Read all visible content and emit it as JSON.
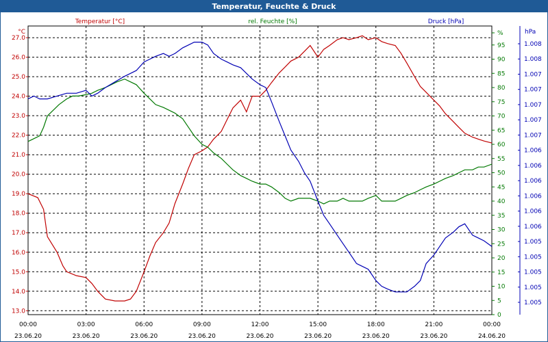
{
  "window": {
    "title": "Temperatur, Feuchte & Druck"
  },
  "colors": {
    "temperature": "#c00000",
    "humidity": "#007800",
    "pressure": "#0000b4",
    "titlebar": "#1f5a96",
    "grid": "#000000"
  },
  "chart_data": {
    "type": "line",
    "title": "Temperatur, Feuchte & Druck",
    "x": {
      "ticks": [
        {
          "hours": 0,
          "time": "00:00",
          "date": "23.06.20"
        },
        {
          "hours": 3,
          "time": "03:00",
          "date": "23.06.20"
        },
        {
          "hours": 6,
          "time": "06:00",
          "date": "23.06.20"
        },
        {
          "hours": 9,
          "time": "09:00",
          "date": "23.06.20"
        },
        {
          "hours": 12,
          "time": "12:00",
          "date": "23.06.20"
        },
        {
          "hours": 15,
          "time": "15:00",
          "date": "23.06.20"
        },
        {
          "hours": 18,
          "time": "18:00",
          "date": "23.06.20"
        },
        {
          "hours": 21,
          "time": "21:00",
          "date": "23.06.20"
        },
        {
          "hours": 24,
          "time": "00:00",
          "date": "24.06.20"
        }
      ],
      "range": [
        0,
        24
      ]
    },
    "y_left": {
      "unit": "°C",
      "range": [
        12.8,
        27.6
      ],
      "ticks": [
        "13.0",
        "14.0",
        "15.0",
        "16.0",
        "17.0",
        "18.0",
        "19.0",
        "20.0",
        "21.0",
        "22.0",
        "23.0",
        "24.0",
        "25.0",
        "26.0",
        "27.0"
      ]
    },
    "y_right1": {
      "unit": "%",
      "range": [
        0,
        100
      ],
      "ticks": [
        "0",
        "5",
        "10",
        "15",
        "20",
        "25",
        "30",
        "35",
        "40",
        "45",
        "50",
        "55",
        "60",
        "65",
        "70",
        "75",
        "80",
        "85",
        "90",
        "95",
        "%"
      ]
    },
    "y_right2": {
      "unit": "hPa",
      "ticks": [
        "1.005",
        "1.005",
        "1.005",
        "1.005",
        "1.005",
        "1.006",
        "1.006",
        "1.006",
        "1.006",
        "1.006",
        "1.006",
        "1.007",
        "1.007",
        "1.007",
        "1.007",
        "1.007",
        "1.008",
        "1.008"
      ]
    },
    "series": [
      {
        "name": "Temperatur [°C]",
        "axis": "left",
        "x": [
          0,
          0.5,
          0.8,
          1,
          1.5,
          1.8,
          2,
          2.5,
          3,
          3.3,
          3.6,
          4,
          4.5,
          5,
          5.3,
          5.6,
          6,
          6.3,
          6.6,
          7,
          7.3,
          7.6,
          8,
          8.3,
          8.6,
          9,
          9.3,
          9.6,
          10,
          10.3,
          10.6,
          11,
          11.3,
          11.6,
          12,
          12.3,
          12.6,
          13,
          13.3,
          13.6,
          14,
          14.3,
          14.6,
          15,
          15.3,
          15.6,
          16,
          16.3,
          16.6,
          17,
          17.3,
          17.6,
          18,
          18.3,
          18.6,
          19,
          19.3,
          19.6,
          20,
          20.3,
          20.6,
          21,
          21.3,
          21.6,
          22,
          22.3,
          22.6,
          23,
          23.3,
          23.6,
          24
        ],
        "values": [
          19.0,
          18.8,
          18.2,
          16.8,
          16.0,
          15.3,
          15.0,
          14.8,
          14.7,
          14.4,
          14.0,
          13.6,
          13.5,
          13.5,
          13.6,
          14.0,
          15.0,
          15.8,
          16.5,
          17.0,
          17.5,
          18.5,
          19.5,
          20.3,
          21.0,
          21.2,
          21.4,
          21.8,
          22.2,
          22.8,
          23.4,
          23.8,
          23.2,
          24.0,
          24.0,
          24.3,
          24.7,
          25.2,
          25.5,
          25.8,
          26.0,
          26.3,
          26.6,
          26.0,
          26.4,
          26.6,
          26.9,
          27.0,
          26.9,
          27.0,
          27.1,
          26.9,
          27.0,
          26.8,
          26.7,
          26.6,
          26.2,
          25.7,
          25.0,
          24.5,
          24.2,
          23.8,
          23.5,
          23.1,
          22.7,
          22.4,
          22.1,
          21.9,
          21.8,
          21.7,
          21.6
        ]
      },
      {
        "name": "rel. Feuchte [%]",
        "axis": "right1",
        "x": [
          0,
          0.3,
          0.6,
          0.8,
          1,
          1.3,
          1.6,
          2,
          2.3,
          2.6,
          3,
          3.3,
          3.6,
          4,
          4.3,
          4.6,
          5,
          5.3,
          5.6,
          6,
          6.3,
          6.6,
          7,
          7.3,
          7.6,
          8,
          8.3,
          8.6,
          9,
          9.3,
          9.6,
          10,
          10.3,
          10.6,
          11,
          11.3,
          11.6,
          12,
          12.3,
          12.6,
          13,
          13.3,
          13.6,
          14,
          14.3,
          14.6,
          15,
          15.3,
          15.6,
          16,
          16.3,
          16.6,
          17,
          17.3,
          17.6,
          18,
          18.3,
          18.6,
          19,
          19.3,
          19.6,
          20,
          20.3,
          20.6,
          21,
          21.3,
          21.6,
          22,
          22.3,
          22.6,
          23,
          23.3,
          23.6,
          24
        ],
        "values": [
          61,
          62,
          63,
          66,
          70,
          72,
          74,
          76,
          77,
          77,
          77.5,
          78,
          79,
          80,
          81,
          82,
          83,
          82,
          81,
          78,
          76,
          74,
          73,
          72,
          71,
          69,
          66,
          63,
          60,
          59,
          57,
          55,
          53,
          51,
          49,
          48,
          47,
          46,
          46,
          45,
          43,
          41,
          40,
          41,
          41,
          41,
          40,
          39,
          40,
          40,
          41,
          40,
          40,
          40,
          41,
          42,
          40,
          40,
          40,
          41,
          42,
          43,
          44,
          45,
          46,
          47,
          48,
          49,
          50,
          51,
          51,
          52,
          52,
          53
        ]
      },
      {
        "name": "Druck [hPa]",
        "axis": "right1",
        "x": [
          0,
          0.3,
          0.6,
          1,
          1.5,
          2,
          2.5,
          3,
          3.3,
          3.6,
          4,
          4.5,
          5,
          5.3,
          5.6,
          6,
          6.3,
          6.6,
          7,
          7.3,
          7.6,
          8,
          8.3,
          8.6,
          9,
          9.3,
          9.6,
          10,
          10.3,
          10.6,
          11,
          11.3,
          11.6,
          12,
          12.3,
          12.6,
          13,
          13.3,
          13.6,
          14,
          14.3,
          14.6,
          15,
          15.3,
          15.6,
          16,
          16.3,
          16.6,
          17,
          17.3,
          17.6,
          18,
          18.3,
          18.6,
          19,
          19.3,
          19.6,
          20,
          20.3,
          20.6,
          21,
          21.3,
          21.6,
          22,
          22.3,
          22.6,
          23,
          23.3,
          23.6,
          24
        ],
        "values": [
          76,
          77,
          76,
          76,
          77,
          78,
          78,
          79,
          77,
          78,
          80,
          82,
          84,
          85,
          86,
          89,
          90,
          91,
          92,
          91,
          92,
          94,
          95,
          96,
          96,
          95,
          92,
          90,
          89,
          88,
          87,
          85,
          83,
          81,
          80,
          75,
          68,
          63,
          58,
          54,
          50,
          47,
          40,
          35,
          32,
          28,
          25,
          22,
          18,
          17,
          16,
          12,
          10,
          9,
          8,
          8,
          8,
          10,
          12,
          18,
          21,
          24,
          27,
          29,
          31,
          32,
          28,
          27,
          26,
          24
        ]
      }
    ]
  }
}
